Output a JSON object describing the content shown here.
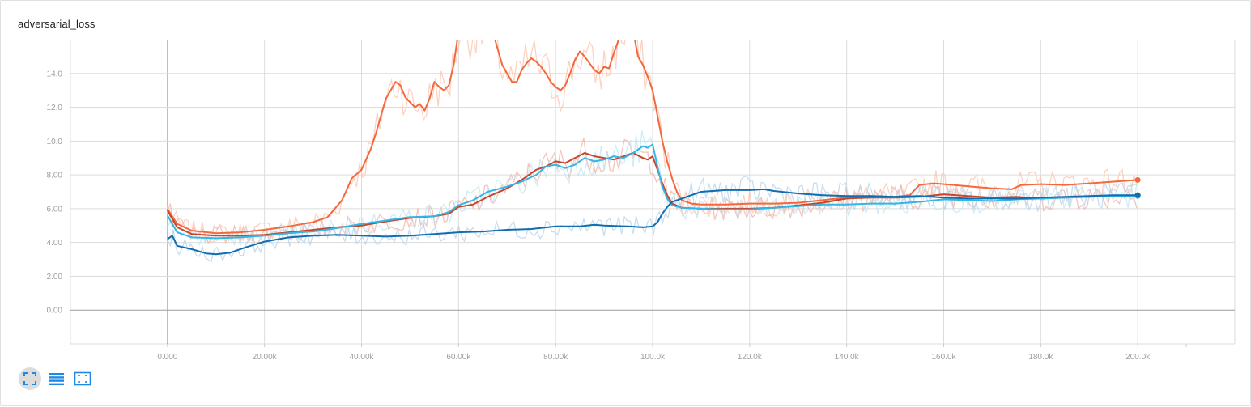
{
  "card": {
    "title": "adversarial_loss"
  },
  "toolbar": {
    "buttons": [
      {
        "name": "fit-domain-icon",
        "color": "#1e88e5",
        "active": true
      },
      {
        "name": "log-scale-icon",
        "color": "#1e88e5",
        "active": false
      },
      {
        "name": "data-selection-icon",
        "color": "#1e88e5",
        "active": false
      }
    ]
  },
  "chart_data": {
    "type": "line",
    "title": "adversarial_loss",
    "xlabel": "",
    "ylabel": "",
    "xlim": [
      -20000,
      220000
    ],
    "ylim": [
      -2,
      16
    ],
    "grid": true,
    "legend": "none",
    "x_ticks": [
      0,
      20000,
      40000,
      60000,
      80000,
      100000,
      120000,
      140000,
      160000,
      180000,
      200000
    ],
    "x_tick_labels": [
      "0.000",
      "20.00k",
      "40.00k",
      "60.00k",
      "80.00k",
      "100.0k",
      "120.0k",
      "140.0k",
      "160.0k",
      "180.0k",
      "200.0k"
    ],
    "y_ticks": [
      0,
      2,
      4,
      6,
      8,
      10,
      12,
      14
    ],
    "y_tick_labels": [
      "0.00",
      "2.00",
      "4.00",
      "6.00",
      "8.00",
      "10.0",
      "12.0",
      "14.0"
    ],
    "smoothed": true,
    "series": [
      {
        "color": "#f4693c",
        "raw_color": "#fbc3ad",
        "points": [
          [
            0,
            6.0
          ],
          [
            2000,
            5.1
          ],
          [
            5000,
            4.7
          ],
          [
            10000,
            4.55
          ],
          [
            15000,
            4.6
          ],
          [
            20000,
            4.75
          ],
          [
            25000,
            4.95
          ],
          [
            30000,
            5.2
          ],
          [
            33000,
            5.5
          ],
          [
            36000,
            6.5
          ],
          [
            38000,
            7.8
          ],
          [
            40000,
            8.3
          ],
          [
            42000,
            9.6
          ],
          [
            43000,
            10.5
          ],
          [
            44000,
            11.5
          ],
          [
            45000,
            12.5
          ],
          [
            46000,
            13.0
          ],
          [
            47000,
            13.5
          ],
          [
            48000,
            13.3
          ],
          [
            49000,
            12.6
          ],
          [
            50000,
            12.3
          ],
          [
            51000,
            12.0
          ],
          [
            52000,
            12.2
          ],
          [
            53000,
            11.8
          ],
          [
            54000,
            12.5
          ],
          [
            55000,
            13.5
          ],
          [
            56000,
            13.2
          ],
          [
            57000,
            13.0
          ],
          [
            58000,
            13.3
          ],
          [
            59000,
            14.5
          ],
          [
            60000,
            16.5
          ],
          [
            67000,
            16.5
          ],
          [
            68000,
            15.5
          ],
          [
            69000,
            14.5
          ],
          [
            70000,
            14.0
          ],
          [
            71000,
            13.5
          ],
          [
            72000,
            13.5
          ],
          [
            73000,
            14.2
          ],
          [
            74000,
            14.6
          ],
          [
            75000,
            14.9
          ],
          [
            76000,
            14.7
          ],
          [
            77000,
            14.4
          ],
          [
            78000,
            14.0
          ],
          [
            79000,
            13.5
          ],
          [
            80000,
            13.2
          ],
          [
            81000,
            13.0
          ],
          [
            82000,
            13.3
          ],
          [
            83000,
            14.0
          ],
          [
            84000,
            14.8
          ],
          [
            85000,
            15.3
          ],
          [
            86000,
            15.0
          ],
          [
            87000,
            14.6
          ],
          [
            88000,
            14.2
          ],
          [
            89000,
            14.0
          ],
          [
            90000,
            14.4
          ],
          [
            91000,
            14.3
          ],
          [
            92000,
            15.2
          ],
          [
            93000,
            16.0
          ],
          [
            94000,
            16.5
          ],
          [
            96000,
            16.5
          ],
          [
            97000,
            15.0
          ],
          [
            98000,
            14.5
          ],
          [
            99000,
            13.8
          ],
          [
            100000,
            13.0
          ],
          [
            101000,
            11.5
          ],
          [
            102000,
            10.0
          ],
          [
            103000,
            8.8
          ],
          [
            104000,
            7.8
          ],
          [
            105000,
            7.0
          ],
          [
            106000,
            6.5
          ],
          [
            108000,
            6.3
          ],
          [
            110000,
            6.25
          ],
          [
            115000,
            6.25
          ],
          [
            120000,
            6.3
          ],
          [
            125000,
            6.3
          ],
          [
            130000,
            6.35
          ],
          [
            135000,
            6.5
          ],
          [
            140000,
            6.65
          ],
          [
            145000,
            6.75
          ],
          [
            150000,
            6.7
          ],
          [
            153000,
            6.8
          ],
          [
            155000,
            7.4
          ],
          [
            158000,
            7.5
          ],
          [
            162000,
            7.4
          ],
          [
            166000,
            7.3
          ],
          [
            170000,
            7.2
          ],
          [
            174000,
            7.15
          ],
          [
            176000,
            7.4
          ],
          [
            180000,
            7.45
          ],
          [
            185000,
            7.4
          ],
          [
            190000,
            7.5
          ],
          [
            195000,
            7.6
          ],
          [
            200000,
            7.7
          ]
        ]
      },
      {
        "color": "#c8452c",
        "raw_color": "#edb1a5",
        "points": [
          [
            0,
            5.9
          ],
          [
            2000,
            4.9
          ],
          [
            5000,
            4.5
          ],
          [
            10000,
            4.4
          ],
          [
            15000,
            4.4
          ],
          [
            20000,
            4.45
          ],
          [
            25000,
            4.6
          ],
          [
            30000,
            4.75
          ],
          [
            35000,
            4.9
          ],
          [
            40000,
            5.0
          ],
          [
            45000,
            5.25
          ],
          [
            50000,
            5.45
          ],
          [
            55000,
            5.55
          ],
          [
            58000,
            5.7
          ],
          [
            60000,
            6.1
          ],
          [
            63000,
            6.25
          ],
          [
            66000,
            6.7
          ],
          [
            70000,
            7.2
          ],
          [
            73000,
            7.7
          ],
          [
            76000,
            8.3
          ],
          [
            78000,
            8.5
          ],
          [
            80000,
            8.8
          ],
          [
            82000,
            8.7
          ],
          [
            84000,
            9.0
          ],
          [
            86000,
            9.3
          ],
          [
            88000,
            9.1
          ],
          [
            90000,
            9.0
          ],
          [
            92000,
            8.9
          ],
          [
            94000,
            9.1
          ],
          [
            96000,
            9.3
          ],
          [
            98000,
            9.0
          ],
          [
            99000,
            8.9
          ],
          [
            100000,
            9.1
          ],
          [
            101000,
            8.3
          ],
          [
            102000,
            7.5
          ],
          [
            103000,
            6.8
          ],
          [
            104000,
            6.3
          ],
          [
            106000,
            6.05
          ],
          [
            110000,
            6.0
          ],
          [
            115000,
            6.0
          ],
          [
            120000,
            6.0
          ],
          [
            125000,
            6.05
          ],
          [
            130000,
            6.2
          ],
          [
            135000,
            6.35
          ],
          [
            140000,
            6.6
          ],
          [
            145000,
            6.65
          ],
          [
            150000,
            6.65
          ],
          [
            155000,
            6.7
          ],
          [
            160000,
            6.85
          ],
          [
            165000,
            6.75
          ],
          [
            170000,
            6.65
          ],
          [
            175000,
            6.7
          ],
          [
            180000,
            6.6
          ],
          [
            185000,
            6.65
          ],
          [
            190000,
            6.7
          ],
          [
            195000,
            6.75
          ],
          [
            200000,
            6.8
          ]
        ]
      },
      {
        "color": "#33b5e5",
        "raw_color": "#bfe6f6",
        "points": [
          [
            0,
            5.6
          ],
          [
            2000,
            4.6
          ],
          [
            5000,
            4.3
          ],
          [
            10000,
            4.25
          ],
          [
            15000,
            4.3
          ],
          [
            20000,
            4.4
          ],
          [
            25000,
            4.55
          ],
          [
            30000,
            4.65
          ],
          [
            35000,
            4.85
          ],
          [
            40000,
            5.1
          ],
          [
            45000,
            5.3
          ],
          [
            50000,
            5.5
          ],
          [
            55000,
            5.55
          ],
          [
            58000,
            5.8
          ],
          [
            60000,
            6.2
          ],
          [
            63000,
            6.5
          ],
          [
            66000,
            7.0
          ],
          [
            70000,
            7.3
          ],
          [
            73000,
            7.6
          ],
          [
            76000,
            8.0
          ],
          [
            78000,
            8.5
          ],
          [
            80000,
            8.6
          ],
          [
            82000,
            8.4
          ],
          [
            84000,
            8.6
          ],
          [
            86000,
            9.0
          ],
          [
            88000,
            8.8
          ],
          [
            90000,
            8.9
          ],
          [
            92000,
            9.1
          ],
          [
            94000,
            9.0
          ],
          [
            96000,
            9.3
          ],
          [
            98000,
            9.7
          ],
          [
            99000,
            9.6
          ],
          [
            100000,
            9.8
          ],
          [
            101000,
            8.5
          ],
          [
            102000,
            7.3
          ],
          [
            103000,
            6.6
          ],
          [
            104000,
            6.2
          ],
          [
            106000,
            6.05
          ],
          [
            110000,
            6.0
          ],
          [
            115000,
            5.95
          ],
          [
            120000,
            5.95
          ],
          [
            125000,
            6.05
          ],
          [
            130000,
            6.15
          ],
          [
            135000,
            6.25
          ],
          [
            140000,
            6.25
          ],
          [
            145000,
            6.3
          ],
          [
            150000,
            6.3
          ],
          [
            155000,
            6.4
          ],
          [
            160000,
            6.55
          ],
          [
            165000,
            6.5
          ],
          [
            170000,
            6.45
          ],
          [
            175000,
            6.55
          ],
          [
            180000,
            6.6
          ],
          [
            185000,
            6.65
          ],
          [
            190000,
            6.7
          ],
          [
            195000,
            6.75
          ],
          [
            200000,
            6.75
          ]
        ]
      },
      {
        "color": "#0f6db0",
        "raw_color": "#b5d3ea",
        "points": [
          [
            0,
            4.2
          ],
          [
            1000,
            4.4
          ],
          [
            2000,
            3.8
          ],
          [
            5000,
            3.6
          ],
          [
            8000,
            3.35
          ],
          [
            10000,
            3.3
          ],
          [
            13000,
            3.4
          ],
          [
            16000,
            3.7
          ],
          [
            20000,
            4.05
          ],
          [
            25000,
            4.3
          ],
          [
            30000,
            4.4
          ],
          [
            35000,
            4.45
          ],
          [
            40000,
            4.4
          ],
          [
            45000,
            4.35
          ],
          [
            50000,
            4.4
          ],
          [
            55000,
            4.5
          ],
          [
            60000,
            4.6
          ],
          [
            65000,
            4.65
          ],
          [
            70000,
            4.75
          ],
          [
            75000,
            4.8
          ],
          [
            80000,
            4.95
          ],
          [
            85000,
            4.95
          ],
          [
            88000,
            5.05
          ],
          [
            90000,
            5.0
          ],
          [
            95000,
            4.95
          ],
          [
            98000,
            4.9
          ],
          [
            100000,
            4.95
          ],
          [
            101000,
            5.2
          ],
          [
            102000,
            5.7
          ],
          [
            103000,
            6.1
          ],
          [
            104000,
            6.4
          ],
          [
            106000,
            6.6
          ],
          [
            108000,
            6.8
          ],
          [
            110000,
            7.0
          ],
          [
            115000,
            7.1
          ],
          [
            120000,
            7.1
          ],
          [
            123000,
            7.15
          ],
          [
            125000,
            7.05
          ],
          [
            130000,
            6.9
          ],
          [
            135000,
            6.8
          ],
          [
            140000,
            6.75
          ],
          [
            145000,
            6.75
          ],
          [
            150000,
            6.7
          ],
          [
            155000,
            6.75
          ],
          [
            160000,
            6.65
          ],
          [
            165000,
            6.6
          ],
          [
            170000,
            6.6
          ],
          [
            175000,
            6.6
          ],
          [
            180000,
            6.65
          ],
          [
            185000,
            6.7
          ],
          [
            190000,
            6.75
          ],
          [
            195000,
            6.8
          ],
          [
            200000,
            6.8
          ]
        ]
      }
    ]
  }
}
